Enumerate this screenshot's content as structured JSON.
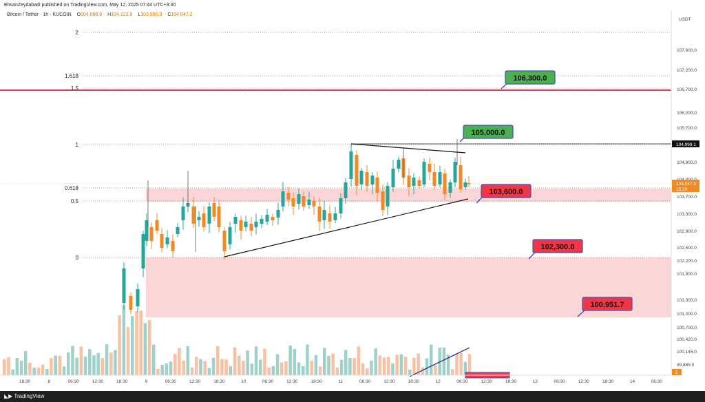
{
  "topbar": {
    "published": "EhsanZeydabadi published on TradingView.com, May 12, 2025 07:44 UTC+3:30"
  },
  "header": {
    "symbol": "Bitcoin / Tether · 1h · KUCOIN",
    "o_label": "O",
    "o": "104,088.8",
    "h_label": "H",
    "h": "104,122.8",
    "l_label": "L",
    "l": "103,956.9",
    "c_label": "C",
    "c": "104,047.2"
  },
  "price_axis": {
    "currency": "USDT",
    "ticks": [
      "107,600.0",
      "107,200.0",
      "106,700.0",
      "106,200.0",
      "105,700.0",
      "105,300.0",
      "104,800.0",
      "104,300.0",
      "103,700.0",
      "103,300.0",
      "102,900.0",
      "102,500.0",
      "102,200.0",
      "101,900.0",
      "101,300.0",
      "101,000.0",
      "100,700.0",
      "100,420.0",
      "100,145.0",
      "99,865.0"
    ],
    "marker_high": "104,999.1",
    "marker_last": "104,047.2",
    "marker_countdown": "15:29",
    "marker_bottom": "5"
  },
  "time_axis": {
    "ticks": [
      "18:30",
      "8",
      "06:30",
      "12:30",
      "18:30",
      "9",
      "06:30",
      "12:30",
      "18:30",
      "10",
      "06:30",
      "12:30",
      "18:30",
      "11",
      "06:30",
      "12:30",
      "18:30",
      "12",
      "06:30",
      "12:30",
      "18:30",
      "13",
      "06:30",
      "12:30",
      "18:30",
      "14",
      "06:30"
    ]
  },
  "fib_levels": [
    {
      "label": "2"
    },
    {
      "label": "1.618"
    },
    {
      "label": "1.5"
    },
    {
      "label": "1"
    },
    {
      "label": "0.618"
    },
    {
      "label": "0.5"
    },
    {
      "label": "0"
    }
  ],
  "callouts": [
    {
      "text": "106,300.0",
      "color": "#4caf50"
    },
    {
      "text": "105,000.0",
      "color": "#4caf50"
    },
    {
      "text": "103,600.0",
      "color": "#f23645"
    },
    {
      "text": "102,300.0",
      "color": "#f23645"
    },
    {
      "text": "100,951.7",
      "color": "#f23645"
    }
  ],
  "colors": {
    "up": "#26a69a",
    "down": "#ef8a25",
    "zone": "#fbd6d9",
    "support_line": "#e23a4c",
    "label_border": "#3f51b5"
  },
  "footer": {
    "brand": "TradingView"
  }
}
